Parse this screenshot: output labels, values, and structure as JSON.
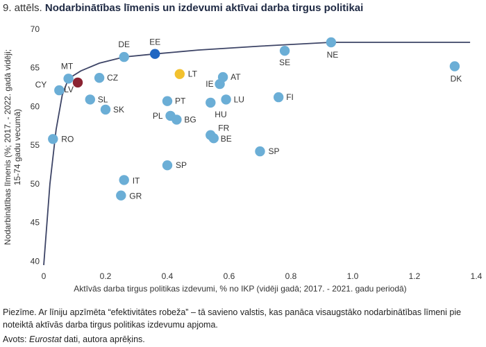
{
  "header": {
    "prefix": "9. attēls.",
    "title": "Nodarbinātības līmenis un izdevumi aktīvai darba tirgus politikai"
  },
  "footer": {
    "note": "Piezīme. Ar līniju apzīmēta “efektivitātes robeža” – tā savieno valstis, kas panāca visaugstāko nodarbinātības līmeni pie noteiktā aktīvās darba tirgus politikas izdevumu apjoma.",
    "source_prefix": "Avots: ",
    "source_name": "Eurostat",
    "source_suffix": " dati, autora aprēķins."
  },
  "chart_data": {
    "type": "scatter",
    "xlabel": "Aktīvās darba tirgus politikas izdevumi, % no IKP (vidēji gadā; 2017. - 2021. gadu periodā)",
    "ylabel": "Nodarbinātības līmenis (%; 2017. - 2022. gadā vidēji; 15-74 gadu vecumā)",
    "xlim": [
      0,
      1.4
    ],
    "ylim": [
      39.5,
      70
    ],
    "xticks": [
      "0",
      "0.2",
      "0.4",
      "0.6",
      "0.8",
      "1.0",
      "1.2",
      "1.4"
    ],
    "yticks": [
      "40",
      "45",
      "50",
      "55",
      "60",
      "65",
      "70"
    ],
    "grid": false,
    "colors": {
      "default": "#6baed6",
      "EE": "#1f66c2",
      "LV": "#8b2332",
      "LT": "#f2c12e",
      "frontier": "#3d4466"
    },
    "points": [
      {
        "label": "CY",
        "x": 0.05,
        "y": 62.1
      },
      {
        "label": "MT",
        "x": 0.08,
        "y": 63.6
      },
      {
        "label": "LV",
        "x": 0.11,
        "y": 63.1
      },
      {
        "label": "RO",
        "x": 0.03,
        "y": 55.8
      },
      {
        "label": "SL",
        "x": 0.15,
        "y": 60.9
      },
      {
        "label": "CZ",
        "x": 0.18,
        "y": 63.7
      },
      {
        "label": "SK",
        "x": 0.2,
        "y": 59.6
      },
      {
        "label": "DE",
        "x": 0.26,
        "y": 66.4
      },
      {
        "label": "EE",
        "x": 0.36,
        "y": 66.8
      },
      {
        "label": "IT",
        "x": 0.26,
        "y": 50.5
      },
      {
        "label": "GR",
        "x": 0.25,
        "y": 48.5
      },
      {
        "label": "LT",
        "x": 0.44,
        "y": 64.2
      },
      {
        "label": "PT",
        "x": 0.4,
        "y": 60.7
      },
      {
        "label": "PL",
        "x": 0.41,
        "y": 58.8
      },
      {
        "label": "BG",
        "x": 0.43,
        "y": 58.3
      },
      {
        "label": "SP",
        "x": 0.4,
        "y": 52.4
      },
      {
        "label": "AT",
        "x": 0.58,
        "y": 63.8
      },
      {
        "label": "IE",
        "x": 0.57,
        "y": 62.9
      },
      {
        "label": "LU",
        "x": 0.59,
        "y": 60.9
      },
      {
        "label": "HU",
        "x": 0.54,
        "y": 60.5
      },
      {
        "label": "FR",
        "x": 0.54,
        "y": 56.3
      },
      {
        "label": "BE",
        "x": 0.55,
        "y": 55.9
      },
      {
        "label": "SP",
        "x": 0.7,
        "y": 54.2
      },
      {
        "label": "FI",
        "x": 0.76,
        "y": 61.2
      },
      {
        "label": "SE",
        "x": 0.78,
        "y": 67.2
      },
      {
        "label": "NE",
        "x": 0.93,
        "y": 68.3
      },
      {
        "label": "DK",
        "x": 1.33,
        "y": 65.2
      }
    ],
    "frontier": [
      [
        0.0,
        39.5
      ],
      [
        0.02,
        50.0
      ],
      [
        0.04,
        57.0
      ],
      [
        0.06,
        61.5
      ],
      [
        0.08,
        63.6
      ],
      [
        0.12,
        64.6
      ],
      [
        0.18,
        65.6
      ],
      [
        0.26,
        66.4
      ],
      [
        0.36,
        66.8
      ],
      [
        0.5,
        67.3
      ],
      [
        0.7,
        67.8
      ],
      [
        0.93,
        68.3
      ],
      [
        1.38,
        68.3
      ]
    ]
  }
}
